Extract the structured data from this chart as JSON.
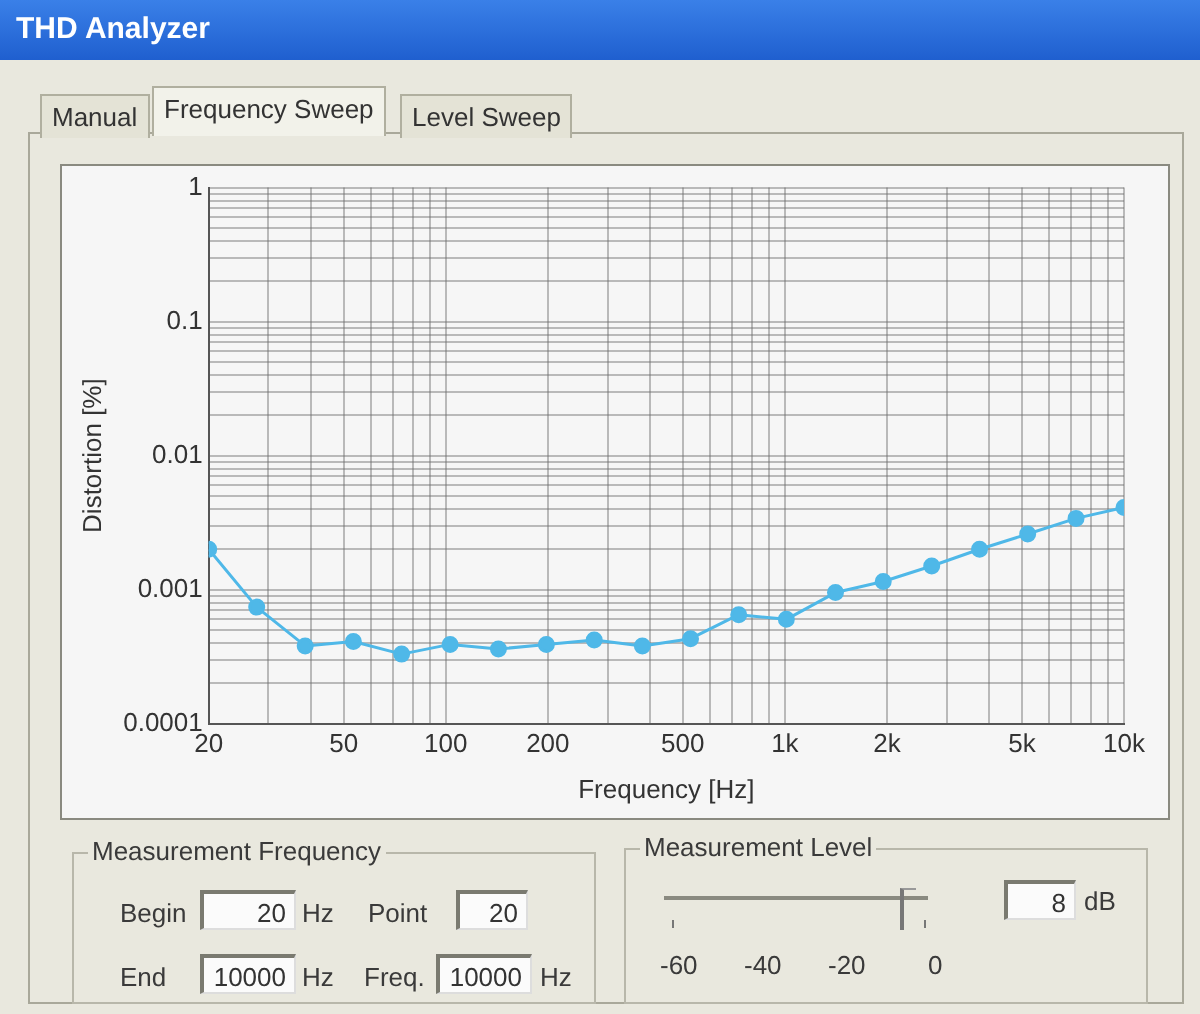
{
  "chart_data": {
    "type": "line",
    "title": "THD Analyzer",
    "xlabel": "Frequency [Hz]",
    "ylabel": "Distortion [%]",
    "x": [
      20,
      27.7,
      38.5,
      53.4,
      74.1,
      103,
      143,
      198,
      274,
      380,
      527,
      731,
      1010,
      1410,
      1950,
      2710,
      3750,
      5200,
      7220,
      10000
    ],
    "series": [
      {
        "color": "#4fb8e8",
        "values": [
          0.002,
          0.00074,
          0.00038,
          0.00041,
          0.00033,
          0.00039,
          0.00036,
          0.00039,
          0.00042,
          0.00038,
          0.00043,
          0.00065,
          0.0006,
          0.00095,
          0.00115,
          0.0015,
          0.002,
          0.0026,
          0.0034,
          0.0041
        ]
      }
    ],
    "log": "xy",
    "xlim": [
      20,
      10000
    ],
    "ylim": [
      0.0001,
      1
    ],
    "xticks": [
      20,
      {
        "value": 30,
        "label": null
      },
      {
        "value": 40,
        "label": null
      },
      50,
      {
        "value": 60,
        "label": null
      },
      {
        "value": 70,
        "label": null
      },
      {
        "value": 80,
        "label": null
      },
      {
        "value": 90,
        "label": null
      },
      100,
      200,
      {
        "value": 300,
        "label": null
      },
      {
        "value": 400,
        "label": null
      },
      500,
      {
        "value": 600,
        "label": null
      },
      {
        "value": 700,
        "label": null
      },
      {
        "value": 800,
        "label": null
      },
      {
        "value": 900,
        "label": null
      },
      {
        "value": 1000,
        "label": "1k"
      },
      {
        "value": 2000,
        "label": "2k"
      },
      {
        "value": 3000,
        "label": null
      },
      {
        "value": 4000,
        "label": null
      },
      {
        "value": 5000,
        "label": "5k"
      },
      {
        "value": 6000,
        "label": null
      },
      {
        "value": 7000,
        "label": null
      },
      {
        "value": 8000,
        "label": null
      },
      {
        "value": 9000,
        "label": null
      },
      {
        "value": 10000,
        "label": "10k"
      }
    ],
    "yticks": [
      0.0001,
      {
        "value": 0.0002,
        "label": null
      },
      {
        "value": 0.0003,
        "label": null
      },
      {
        "value": 0.0004,
        "label": null
      },
      {
        "value": 0.0005,
        "label": null
      },
      {
        "value": 0.0006,
        "label": null
      },
      {
        "value": 0.0007,
        "label": null
      },
      {
        "value": 0.0008,
        "label": null
      },
      {
        "value": 0.0009,
        "label": null
      },
      0.001,
      {
        "value": 0.002,
        "label": null
      },
      {
        "value": 0.003,
        "label": null
      },
      {
        "value": 0.004,
        "label": null
      },
      {
        "value": 0.005,
        "label": null
      },
      {
        "value": 0.006,
        "label": null
      },
      {
        "value": 0.007,
        "label": null
      },
      {
        "value": 0.008,
        "label": null
      },
      {
        "value": 0.009,
        "label": null
      },
      0.01,
      {
        "value": 0.02,
        "label": null
      },
      {
        "value": 0.03,
        "label": null
      },
      {
        "value": 0.04,
        "label": null
      },
      {
        "value": 0.05,
        "label": null
      },
      {
        "value": 0.06,
        "label": null
      },
      {
        "value": 0.07,
        "label": null
      },
      {
        "value": 0.08,
        "label": null
      },
      {
        "value": 0.09,
        "label": null
      },
      0.1,
      {
        "value": 0.2,
        "label": null
      },
      {
        "value": 0.3,
        "label": null
      },
      {
        "value": 0.4,
        "label": null
      },
      {
        "value": 0.5,
        "label": null
      },
      {
        "value": 0.6,
        "label": null
      },
      {
        "value": 0.7,
        "label": null
      },
      {
        "value": 0.8,
        "label": null
      },
      {
        "value": 0.9,
        "label": null
      },
      1
    ],
    "grid": true,
    "legend": false,
    "marker": "circle",
    "line_style": "solid",
    "annotations": [
      "Manual",
      "Frequency Sweep",
      "Level Sweep",
      "Measurement Frequency",
      "Begin",
      "20",
      "Hz",
      "Point",
      "20",
      "End",
      "10000",
      "Hz",
      "Freq.",
      "10000",
      "Hz",
      "Measurement Level",
      "-60",
      "-40",
      "-20",
      "0",
      "8",
      "dB"
    ]
  }
}
